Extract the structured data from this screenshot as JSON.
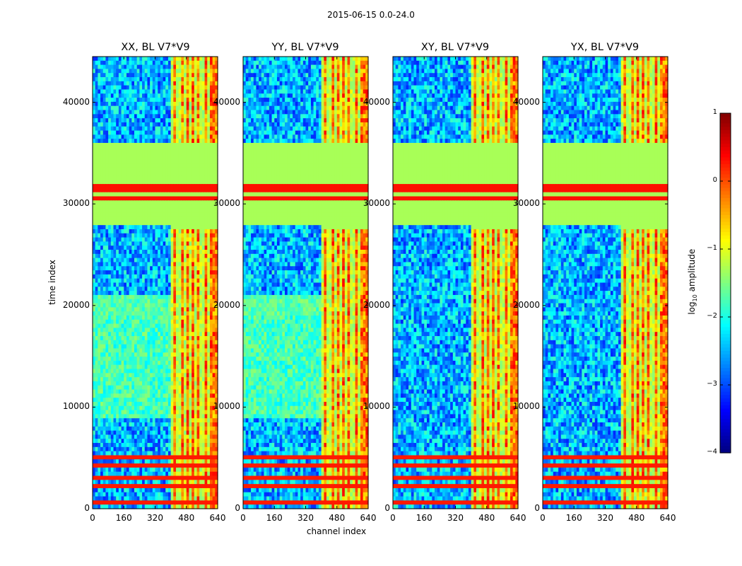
{
  "suptitle": "2015-06-15 0.0-24.0",
  "colors": {
    "background": "#ffffff",
    "quiet_band": "#99ff55",
    "orange_band": "#ff7700",
    "axis_frame": "#000000"
  },
  "chart_data": [
    {
      "type": "heatmap",
      "title": "XX, BL V7*V9",
      "xlabel": "",
      "ylabel": "time index",
      "xlim": [
        0,
        640
      ],
      "ylim": [
        0,
        44500
      ],
      "x_ticks": [
        "0",
        "160",
        "320",
        "480",
        "640"
      ],
      "y_ticks": [
        "0",
        "10000",
        "20000",
        "30000",
        "40000"
      ],
      "value_unit": "log10 amplitude",
      "zlim": [
        -4,
        1
      ]
    },
    {
      "type": "heatmap",
      "title": "YY, BL V7*V9",
      "xlabel": "channel index",
      "ylabel": "",
      "xlim": [
        0,
        640
      ],
      "ylim": [
        0,
        44500
      ],
      "x_ticks": [
        "0",
        "160",
        "320",
        "480",
        "640"
      ],
      "y_ticks": [
        "0",
        "10000",
        "20000",
        "30000",
        "40000"
      ],
      "value_unit": "log10 amplitude",
      "zlim": [
        -4,
        1
      ]
    },
    {
      "type": "heatmap",
      "title": "XY, BL V7*V9",
      "xlabel": "",
      "ylabel": "",
      "xlim": [
        0,
        640
      ],
      "ylim": [
        0,
        44500
      ],
      "x_ticks": [
        "0",
        "160",
        "320",
        "480",
        "640"
      ],
      "y_ticks": [
        "0",
        "10000",
        "20000",
        "30000",
        "40000"
      ],
      "value_unit": "log10 amplitude",
      "zlim": [
        -4,
        1
      ]
    },
    {
      "type": "heatmap",
      "title": "YX, BL V7*V9",
      "xlabel": "",
      "ylabel": "",
      "xlim": [
        0,
        640
      ],
      "ylim": [
        0,
        44500
      ],
      "x_ticks": [
        "0",
        "160",
        "320",
        "480",
        "640"
      ],
      "y_ticks": [
        "0",
        "10000",
        "20000",
        "30000",
        "40000"
      ],
      "value_unit": "log10 amplitude",
      "zlim": [
        -4,
        1
      ]
    }
  ],
  "colorbar": {
    "label": "log10 amplitude",
    "label_prefix": "log",
    "label_sub": "10",
    "label_suffix": " amplitude",
    "ticks": [
      "1",
      "0",
      "−1",
      "−2",
      "−3",
      "−4"
    ],
    "range": [
      -4,
      1
    ],
    "colormap": "jet"
  },
  "features": {
    "quiet_band_time": [
      28000,
      36000
    ],
    "orange_bands_time": [
      30600,
      31200,
      31600
    ],
    "rfi_channel_start": 400,
    "rfi_channel_end": 640,
    "rfi_channels": [
      410,
      440,
      470,
      500,
      530,
      560,
      590
    ],
    "lower_orange_time": [
      500,
      1200,
      2100,
      2900,
      3600,
      4400,
      4900
    ]
  }
}
